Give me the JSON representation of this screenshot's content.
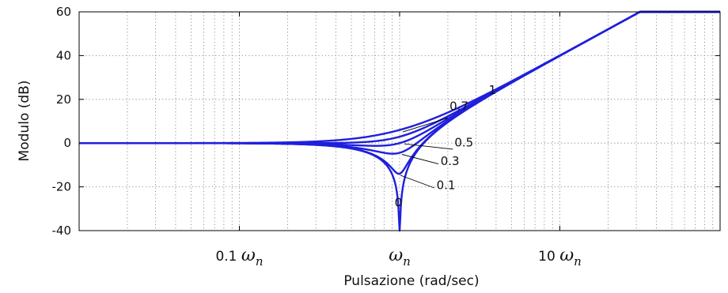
{
  "chart_data": {
    "type": "line",
    "xlabel": "Pulsazione (rad/sec)",
    "ylabel": "Modulo (dB)",
    "x_scale": "log",
    "x_unit": "omega/omega_n",
    "xlim": [
      0.01,
      100
    ],
    "ylim": [
      -40,
      60
    ],
    "grid": true,
    "y_ticks": [
      "60",
      "40",
      "20",
      "0",
      "-20",
      "-40"
    ],
    "x_ticks": [
      {
        "value": 0.1,
        "prefix": "0.1",
        "symbol": "ω",
        "subscript": "n"
      },
      {
        "value": 1,
        "prefix": "",
        "symbol": "ω",
        "subscript": "n"
      },
      {
        "value": 10,
        "prefix": "10",
        "symbol": "ω",
        "subscript": "n"
      }
    ],
    "series_formula": "20*log10(|1 - (w/wn)^2 + 2*j*zeta*(w/wn)|)",
    "series": [
      {
        "zeta": 0,
        "values_at": {
          "0.1": -0.09,
          "0.5": -2.5,
          "1": -40,
          "2": 9.5,
          "10": 39.9,
          "30": 59.1
        }
      },
      {
        "zeta": 0.1,
        "values_at": {
          "0.1": -0.08,
          "0.5": -2.4,
          "1": -14,
          "2": 9.6,
          "10": 39.9,
          "30": 59.1
        }
      },
      {
        "zeta": 0.3,
        "values_at": {
          "0.1": 0.0,
          "0.5": -1.5,
          "1": -4.4,
          "2": 10.1,
          "10": 40.0,
          "30": 59.1
        }
      },
      {
        "zeta": 0.5,
        "values_at": {
          "0.1": 0.0,
          "0.5": 0.0,
          "1": 0.0,
          "2": 11.1,
          "10": 40.0,
          "30": 59.1
        }
      },
      {
        "zeta": 0.7,
        "values_at": {
          "0.1": 0.0,
          "0.5": 1.7,
          "1": 2.9,
          "2": 12.3,
          "10": 40.0,
          "30": 59.1
        }
      },
      {
        "zeta": 1,
        "values_at": {
          "0.1": 0.1,
          "0.5": 3.9,
          "1": 6.0,
          "2": 14.0,
          "10": 40.1,
          "30": 59.1
        }
      }
    ],
    "annotations": [
      {
        "text": "1",
        "series_zeta": 1
      },
      {
        "text": "0.7",
        "series_zeta": 0.7
      },
      {
        "text": "0.5",
        "series_zeta": 0.5
      },
      {
        "text": "0.3",
        "series_zeta": 0.3
      },
      {
        "text": "0.1",
        "series_zeta": 0.1
      },
      {
        "text": "0",
        "series_zeta": 0
      }
    ],
    "colors": {
      "line": "#1f1fdd",
      "grid": "#777777",
      "axis": "#000000"
    }
  }
}
